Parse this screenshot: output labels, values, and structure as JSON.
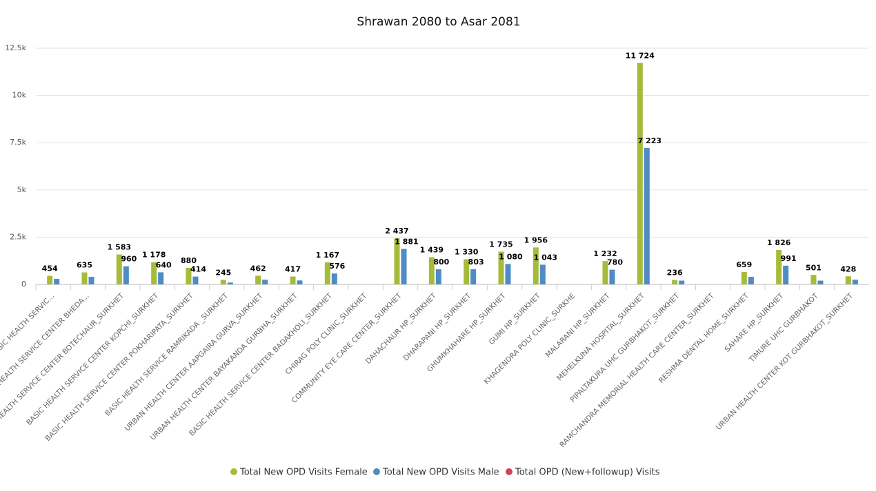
{
  "chart_data": {
    "type": "bar",
    "title": "Shrawan 2080 to Asar 2081",
    "categories": [
      "BASIC HEALTH SERVIC...",
      "BASIC HEALTH SERVICE CENTER BHEDA...",
      "BASIC HEALTH SERVICE CENTER BOTECHAUR_SURKHET",
      "BASIC HEALTH SERVICE CENTER KOPCHI_SURKHET",
      "BASIC HEALTH SERVICE CENTER POKHARIPATA_SURKHET",
      "BASIC HEALTH SERVICE RAMRIKADA _SURKHET",
      "URBAN HEALTH CENTER AAPGAIRA GURVA_SURKHET",
      "URBAN HEALTH CENTER BAYAKANDA GURBHA_SURKHET",
      "BASIC HEALTH SERVICE CENTER BADAKHOLI_SURKHET",
      "CHIRAG POLY CLINIC_SURKHET",
      "COMMUNITY EYE CARE CENTER_SURKHET",
      "DAHACHAUR HP_SURKHET",
      "DHARAPANI HP_SURKHET",
      "GHUMKHAHARE HP_SURKHET",
      "GUMI HP_SURKHET",
      "KHAGENDRA POLY CLINIC_SURKHE",
      "MALARANI HP_SURKHET",
      "MEHELKUNA HOSPITAL_SURKHET",
      "PIPALTAKURA UHC GURBHAKOT_SURKHET",
      "RAMCHANDRA MEMORIAL HEALTH CARE CENTER_SURKHET",
      "RESHMA DENTAL HOME_SURKHET",
      "SAHARE HP_SURKHET",
      "TIMURE UHC GURBHAKOT",
      "URBAN HEALTH CENTER KOT GURBHAKOT_SURKHET"
    ],
    "series": [
      {
        "name": "Total New OPD Visits Female",
        "color": "#a5bc3a",
        "values": [
          454,
          635,
          1583,
          1178,
          880,
          245,
          462,
          417,
          1167,
          null,
          2437,
          1439,
          1330,
          1735,
          1956,
          null,
          1232,
          11724,
          236,
          null,
          659,
          1826,
          501,
          428
        ],
        "value_labels": [
          "454",
          "635",
          "1 583",
          "1 178",
          "880",
          "245",
          "462",
          "417",
          "1 167",
          null,
          "2 437",
          "1 439",
          "1 330",
          "1 735",
          "1 956",
          null,
          "1 232",
          "11 724",
          "236",
          null,
          "659",
          "1 826",
          "501",
          "428"
        ]
      },
      {
        "name": "Total New OPD Visits Male",
        "color": "#4f8bc4",
        "values": [
          290,
          400,
          960,
          640,
          414,
          100,
          250,
          210,
          576,
          null,
          1881,
          800,
          803,
          1080,
          1043,
          null,
          780,
          7223,
          200,
          null,
          400,
          991,
          200,
          250
        ],
        "value_labels": [
          null,
          null,
          "960",
          "640",
          "414",
          null,
          null,
          null,
          "576",
          null,
          "1 881",
          "800",
          "803",
          "1 080",
          "1 043",
          null,
          "780",
          "7 223",
          null,
          null,
          null,
          "991",
          null,
          null
        ]
      },
      {
        "name": "Total OPD (New+followup) Visits",
        "color": "#d0455a",
        "values": [
          null,
          null,
          null,
          null,
          null,
          null,
          null,
          null,
          null,
          null,
          null,
          null,
          null,
          null,
          null,
          null,
          null,
          null,
          null,
          null,
          null,
          null,
          null,
          null
        ]
      }
    ],
    "ylim": [
      0,
      12500
    ],
    "yticks": [
      0,
      {
        "value": 2500,
        "label": "2.5k"
      },
      {
        "value": 5000,
        "label": "5k"
      },
      {
        "value": 7500,
        "label": "7.5k"
      },
      {
        "value": 10000,
        "label": "10k"
      },
      {
        "value": 12500,
        "label": "12.5k"
      }
    ],
    "grid": true
  }
}
